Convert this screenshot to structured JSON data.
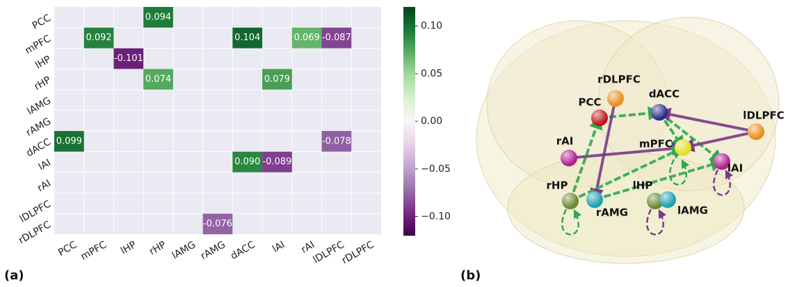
{
  "chart_data": {
    "type": "heatmap",
    "rows": [
      "PCC",
      "mPFC",
      "lHP",
      "rHP",
      "lAMG",
      "rAMG",
      "dACC",
      "lAI",
      "rAI",
      "lDLPFC",
      "rDLPFC"
    ],
    "columns": [
      "PCC",
      "mPFC",
      "lHP",
      "rHP",
      "lAMG",
      "rAMG",
      "dACC",
      "lAI",
      "rAI",
      "lDLPFC",
      "rDLPFC"
    ],
    "values": [
      [
        null,
        null,
        null,
        0.094,
        null,
        null,
        null,
        null,
        null,
        null,
        null
      ],
      [
        null,
        0.092,
        null,
        null,
        null,
        null,
        0.104,
        null,
        0.069,
        -0.087,
        null
      ],
      [
        null,
        null,
        -0.101,
        null,
        null,
        null,
        null,
        null,
        null,
        null,
        null
      ],
      [
        null,
        null,
        null,
        0.074,
        null,
        null,
        null,
        0.079,
        null,
        null,
        null
      ],
      [
        null,
        null,
        null,
        null,
        null,
        null,
        null,
        null,
        null,
        null,
        null
      ],
      [
        null,
        null,
        null,
        null,
        null,
        null,
        null,
        null,
        null,
        null,
        null
      ],
      [
        0.099,
        null,
        null,
        null,
        null,
        null,
        null,
        null,
        null,
        -0.078,
        null
      ],
      [
        null,
        null,
        null,
        null,
        null,
        null,
        0.09,
        -0.089,
        null,
        null,
        null
      ],
      [
        null,
        null,
        null,
        null,
        null,
        null,
        null,
        null,
        null,
        null,
        null
      ],
      [
        null,
        null,
        null,
        null,
        null,
        null,
        null,
        null,
        null,
        null,
        null
      ],
      [
        null,
        null,
        null,
        null,
        null,
        -0.076,
        null,
        null,
        null,
        null,
        null
      ]
    ],
    "value_labels": [
      [
        null,
        null,
        null,
        "0.094",
        null,
        null,
        null,
        null,
        null,
        null,
        null
      ],
      [
        null,
        "0.092",
        null,
        null,
        null,
        null,
        "0.104",
        null,
        "0.069",
        "-0.087",
        null
      ],
      [
        null,
        null,
        "-0.101",
        null,
        null,
        null,
        null,
        null,
        null,
        null,
        null
      ],
      [
        null,
        null,
        null,
        "0.074",
        null,
        null,
        null,
        "0.079",
        null,
        null,
        null
      ],
      [
        null,
        null,
        null,
        null,
        null,
        null,
        null,
        null,
        null,
        null,
        null
      ],
      [
        null,
        null,
        null,
        null,
        null,
        null,
        null,
        null,
        null,
        null,
        null
      ],
      [
        "0.099",
        null,
        null,
        null,
        null,
        null,
        null,
        null,
        null,
        "-0.078",
        null
      ],
      [
        null,
        null,
        null,
        null,
        null,
        null,
        "0.090",
        "-0.089",
        null,
        null,
        null
      ],
      [
        null,
        null,
        null,
        null,
        null,
        null,
        null,
        null,
        null,
        null,
        null
      ],
      [
        null,
        null,
        null,
        null,
        null,
        null,
        null,
        null,
        null,
        null,
        null
      ],
      [
        null,
        null,
        null,
        null,
        null,
        "-0.076",
        null,
        null,
        null,
        null,
        null
      ]
    ],
    "clim": [
      -0.12,
      0.12
    ],
    "cticks": [
      {
        "value": 0.1,
        "label": "0.10"
      },
      {
        "value": 0.05,
        "label": "0.05"
      },
      {
        "value": 0,
        "label": "0.00"
      },
      {
        "value": -0.05,
        "label": "−0.05"
      },
      {
        "value": -0.1,
        "label": "−0.10"
      }
    ],
    "colors": [
      "#40004b",
      "#762a83",
      "#9970ab",
      "#c2a5cf",
      "#e7d4e8",
      "#f7f7f7",
      "#d9f0d3",
      "#a6dba0",
      "#5aae61",
      "#1b7837",
      "#00441b"
    ],
    "grid": true
  },
  "panels": {
    "a": "(a)",
    "b": "(b)"
  },
  "diagram": {
    "nodes": [
      {
        "label": "rDLPFC",
        "color": "#e8901e"
      },
      {
        "label": "PCC",
        "color": "#c0141c"
      },
      {
        "label": "dACC",
        "color": "#2c2c8c"
      },
      {
        "label": "lDLPFC",
        "color": "#e8901e"
      },
      {
        "label": "rAI",
        "color": "#b0208f"
      },
      {
        "label": "mPFC",
        "color": "#e2e020"
      },
      {
        "label": "lAI",
        "color": "#b0208f"
      },
      {
        "label": "rHP",
        "color": "#6a8a30"
      },
      {
        "label": "lHP",
        "color": "#6a8a30"
      },
      {
        "label": "rAMG",
        "color": "#20a0b0"
      },
      {
        "label": "lAMG",
        "color": "#20a0b0"
      }
    ]
  }
}
